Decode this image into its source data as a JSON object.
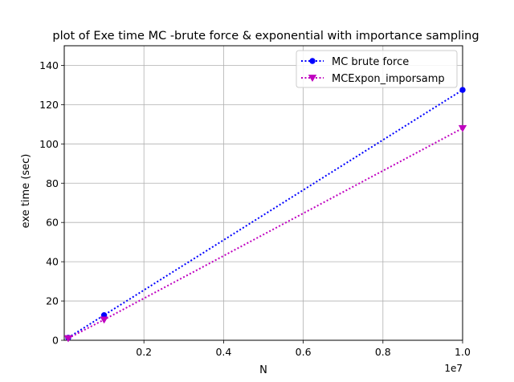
{
  "chart_data": {
    "type": "line",
    "title": "plot of  Exe time MC -brute force & exponential with importance sampling",
    "xlabel": "N",
    "ylabel": "exe time (sec)",
    "x_offset_label": "1e7",
    "xlim": [
      0,
      1.0
    ],
    "ylim": [
      0,
      150
    ],
    "xticks": [
      0.2,
      0.4,
      0.6,
      0.8,
      1.0
    ],
    "xtick_labels": [
      "0.2",
      "0.4",
      "0.6",
      "0.8",
      "1.0"
    ],
    "yticks": [
      0,
      20,
      40,
      60,
      80,
      100,
      120,
      140
    ],
    "ytick_labels": [
      "0",
      "20",
      "40",
      "60",
      "80",
      "100",
      "120",
      "140"
    ],
    "grid": true,
    "legend_position": "top-right",
    "series": [
      {
        "name": "MC brute force",
        "color": "#0000ff",
        "marker": "circle",
        "linestyle": "dotted",
        "x": [
          0.01,
          0.1,
          1.0
        ],
        "y": [
          1.3,
          12.8,
          127.5
        ]
      },
      {
        "name": "MCExpon_imporsamp",
        "color": "#bf00bf",
        "marker": "triangle-down",
        "linestyle": "dotted",
        "x": [
          0.01,
          0.1,
          1.0
        ],
        "y": [
          1.0,
          10.5,
          108.0
        ]
      }
    ]
  }
}
